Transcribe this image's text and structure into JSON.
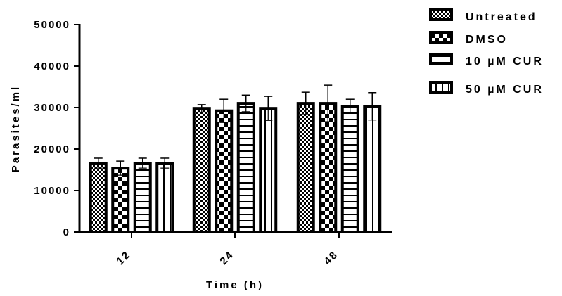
{
  "chart_data": {
    "type": "bar",
    "title": "",
    "xlabel": "Time (h)",
    "ylabel": "Parasites/ml",
    "ylim": [
      0,
      50000
    ],
    "yticks": [
      0,
      10000,
      20000,
      30000,
      40000,
      50000
    ],
    "ytick_labels": [
      "0",
      "10000",
      "20000",
      "30000",
      "40000",
      "50000"
    ],
    "categories": [
      "12",
      "24",
      "48"
    ],
    "grid": false,
    "legend_position": "top-right",
    "series": [
      {
        "name": "Untreated",
        "pattern": "fine-checker",
        "values": [
          16600,
          29800,
          31000
        ],
        "error_upper": [
          17800,
          30700,
          33700
        ]
      },
      {
        "name": "DMSO",
        "pattern": "coarse-checker",
        "values": [
          15400,
          29200,
          31000
        ],
        "error_upper": [
          17100,
          32000,
          35400
        ]
      },
      {
        "name": "10 µM CUR",
        "pattern": "horizontal-stripes",
        "values": [
          16600,
          31000,
          30300
        ],
        "error_upper": [
          17800,
          33000,
          32000
        ]
      },
      {
        "name": "50 µM CUR",
        "pattern": "vertical-stripes",
        "values": [
          16600,
          29800,
          30300
        ],
        "error_upper": [
          17800,
          32700,
          33600
        ]
      }
    ]
  },
  "legend": {
    "items": [
      {
        "label": "Untreated"
      },
      {
        "label": "DMSO"
      },
      {
        "label": "10 µM CUR"
      },
      {
        "label": "50 µM CUR"
      }
    ]
  },
  "axes": {
    "x_title": "Time (h)",
    "y_title": "Parasites/ml"
  }
}
